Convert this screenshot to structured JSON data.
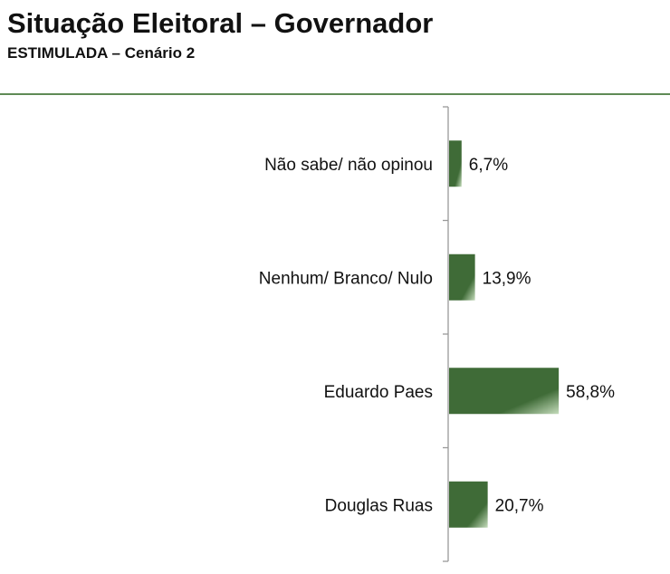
{
  "title": "Situação Eleitoral – Governador",
  "subtitle": "ESTIMULADA – Cenário 2",
  "colors": {
    "bar_dark": "#3f6b37",
    "bar_light": "#c5dcbc",
    "divider": "#5f8a55",
    "axis": "#999999"
  },
  "chart_data": {
    "type": "bar",
    "orientation": "horizontal",
    "categories": [
      "Não sabe/ não opinou",
      "Nenhum/ Branco/ Nulo",
      "Eduardo Paes",
      "Douglas Ruas"
    ],
    "values": [
      6.7,
      13.9,
      58.8,
      20.7
    ],
    "value_labels": [
      "6,7%",
      "13,9%",
      "58,8%",
      "20,7%"
    ],
    "xlim": [
      0,
      100
    ],
    "grid": false,
    "legend": "none"
  }
}
